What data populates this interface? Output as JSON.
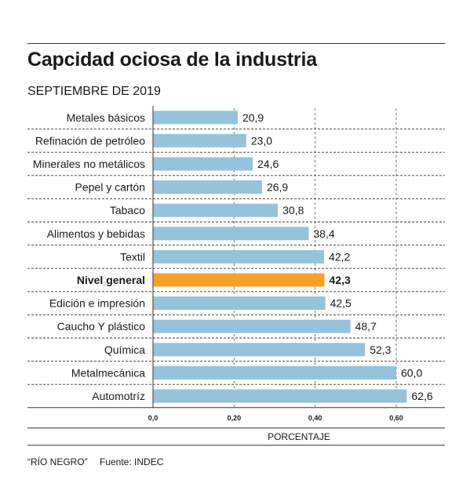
{
  "header": {
    "title": "Capcidad ociosa de la industria",
    "subtitle": "SEPTIEMBRE DE 2019"
  },
  "footer": {
    "credit": "“RÍO NEGRO”",
    "source": "Fuente: INDEC"
  },
  "colors": {
    "bar": "#95c3db",
    "highlight": "#f8a12a",
    "text": "#1a1a1a"
  },
  "chart_data": {
    "type": "bar",
    "orientation": "horizontal",
    "xlabel": "PORCENTAJE",
    "xlim": [
      0,
      0.72
    ],
    "xticks": [
      "0,0",
      "0,20",
      "0,40",
      "0,60"
    ],
    "xtick_values": [
      0,
      0.2,
      0.4,
      0.6
    ],
    "grid": true,
    "highlight_category": "Nivel general",
    "categories": [
      "Metales básicos",
      "Refinación de petróleo",
      "Minerales no metálicos",
      "Pepel y cartón",
      "Tabaco",
      "Alimentos y bebidas",
      "Textil",
      "Nivel general",
      "Edición e impresión",
      "Caucho Y plástico",
      "Química",
      "Metalmecánica",
      "Automotríz"
    ],
    "values": [
      20.9,
      23.0,
      24.6,
      26.9,
      30.8,
      38.4,
      42.2,
      42.3,
      42.5,
      48.7,
      52.3,
      60.0,
      62.6
    ],
    "value_labels": [
      "20,9",
      "23,0",
      "24,6",
      "26,9",
      "30,8",
      "38,4",
      "42,2",
      "42,3",
      "42,5",
      "48,7",
      "52,3",
      "60,0",
      "62,6"
    ]
  }
}
